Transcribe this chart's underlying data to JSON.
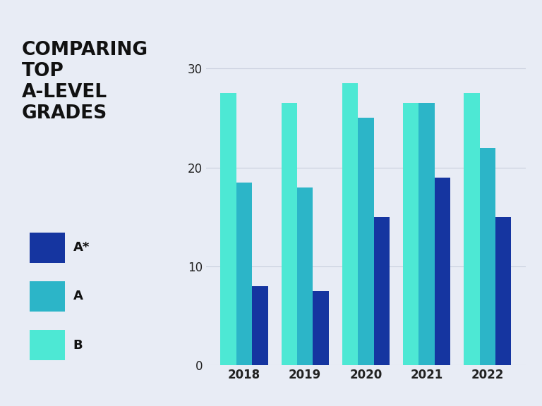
{
  "years": [
    "2018",
    "2019",
    "2020",
    "2021",
    "2022"
  ],
  "A_star": [
    8.0,
    7.5,
    15.0,
    19.0,
    15.0
  ],
  "A": [
    18.5,
    18.0,
    25.0,
    26.5,
    22.0
  ],
  "B": [
    27.5,
    26.5,
    28.5,
    26.5,
    27.5
  ],
  "color_A_star": "#1535a0",
  "color_A": "#2cb5c8",
  "color_B": "#4de8d4",
  "background_color": "#e8ecf5",
  "title_lines": [
    "COMPARING",
    "TOP",
    "A-LEVEL",
    "GRADES"
  ],
  "legend_labels": [
    "A*",
    "A",
    "B"
  ],
  "ylim": [
    0,
    32
  ],
  "yticks": [
    0,
    10,
    20,
    30
  ],
  "bar_width": 0.26,
  "title_fontsize": 19,
  "legend_fontsize": 13,
  "tick_fontsize": 12
}
